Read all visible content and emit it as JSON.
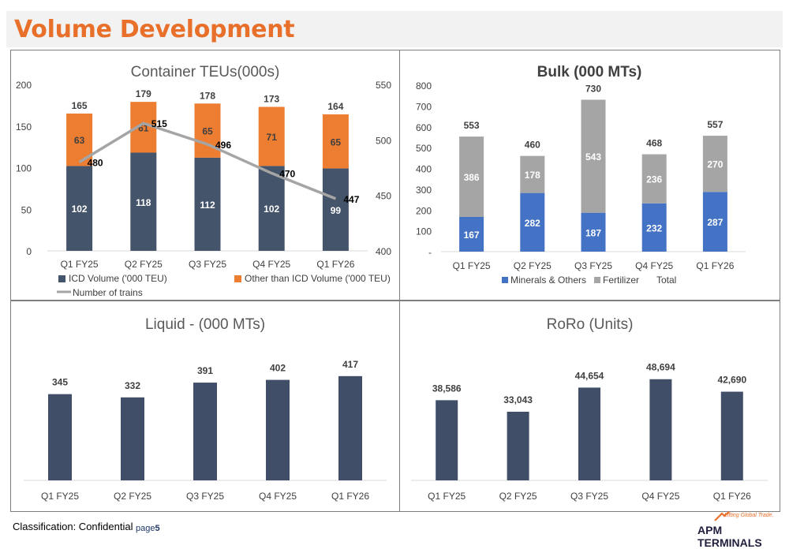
{
  "page": {
    "title": "Volume Development",
    "classification": "Classification: Confidential",
    "page_label": "page",
    "page_number": "5",
    "logo_tagline": "Lifting Global Trade.",
    "logo_name": "APM TERMINALS"
  },
  "colors": {
    "title_orange": "#e8702a",
    "navy": "#44546a",
    "orange": "#ed7d31",
    "gray_line": "#a5a5a5",
    "blue": "#4472c4",
    "light_gray": "#a5a5a5",
    "dark_navy": "#404e68"
  },
  "chart_data": [
    {
      "id": "container",
      "type": "bar",
      "stacked": true,
      "title": "Container TEUs(000s)",
      "categories": [
        "Q1 FY25",
        "Q2 FY25",
        "Q3 FY25",
        "Q4 FY25",
        "Q1 FY26"
      ],
      "series": [
        {
          "name": "ICD Volume ('000 TEU)",
          "values": [
            102,
            118,
            112,
            102,
            99
          ],
          "axis": "left"
        },
        {
          "name": "Other than ICD Volume ('000 TEU)",
          "values": [
            63,
            61,
            65,
            71,
            65
          ],
          "axis": "left"
        },
        {
          "name": "Number of trains",
          "type": "line",
          "values": [
            480,
            515,
            496,
            470,
            447
          ],
          "axis": "right"
        }
      ],
      "totals": [
        165,
        179,
        178,
        173,
        164
      ],
      "left_axis": {
        "ylim": [
          0,
          200
        ],
        "ticks": [
          "0",
          "50",
          "100",
          "150",
          "200"
        ]
      },
      "right_axis": {
        "ylim": [
          400,
          550
        ],
        "ticks": [
          "400",
          "450",
          "500",
          "550"
        ]
      },
      "legend": "bottom"
    },
    {
      "id": "bulk",
      "type": "bar",
      "stacked": true,
      "title": "Bulk (000 MTs)",
      "categories": [
        "Q1 FY25",
        "Q2 FY25",
        "Q3 FY25",
        "Q4 FY25",
        "Q1 FY26"
      ],
      "series": [
        {
          "name": "Minerals & Others",
          "values": [
            167,
            282,
            187,
            232,
            287
          ]
        },
        {
          "name": "Fertilizer",
          "values": [
            386,
            178,
            543,
            236,
            270
          ]
        },
        {
          "name": "Total",
          "values": [
            553,
            460,
            730,
            468,
            557
          ]
        }
      ],
      "ylim": [
        0,
        800
      ],
      "ticks": [
        "-",
        "100",
        "200",
        "300",
        "400",
        "500",
        "600",
        "700",
        "800"
      ],
      "legend": "bottom"
    },
    {
      "id": "liquid",
      "type": "bar",
      "title": "Liquid - (000 MTs)",
      "categories": [
        "Q1 FY25",
        "Q2 FY25",
        "Q3 FY25",
        "Q4 FY25",
        "Q1 FY26"
      ],
      "values": [
        345,
        332,
        391,
        402,
        417
      ],
      "labels": [
        "345",
        "332",
        "391",
        "402",
        "417"
      ]
    },
    {
      "id": "roro",
      "type": "bar",
      "title": "RoRo (Units)",
      "categories": [
        "Q1 FY25",
        "Q2 FY25",
        "Q3 FY25",
        "Q4 FY25",
        "Q1 FY26"
      ],
      "values": [
        38586,
        33043,
        44654,
        48694,
        42690
      ],
      "labels": [
        "38,586",
        "33,043",
        "44,654",
        "48,694",
        "42,690"
      ]
    }
  ]
}
